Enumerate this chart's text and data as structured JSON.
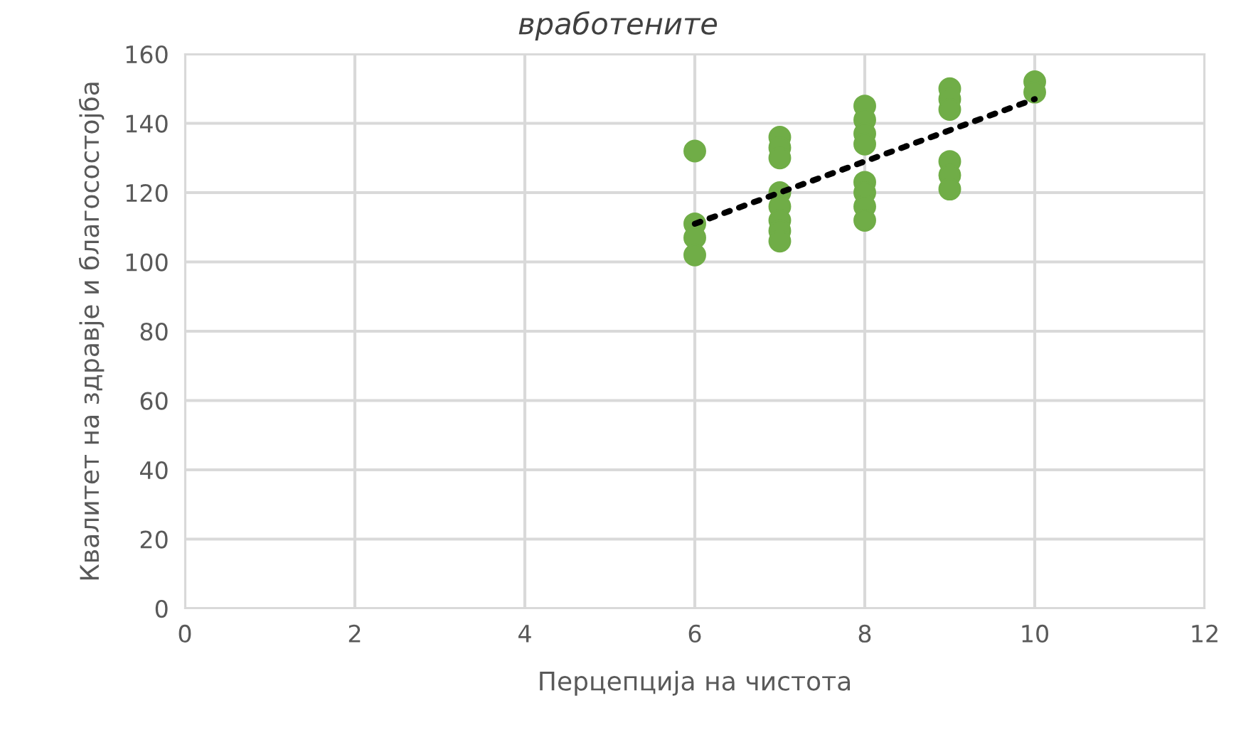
{
  "chart_data": {
    "type": "scatter",
    "title": "вработените",
    "xlabel": "Перцепција на чистота",
    "ylabel": "Квалитет на здравје и благосостојба",
    "series": [
      {
        "color": "#70ad47",
        "marker": "circle",
        "x": [
          6,
          6,
          6,
          6,
          7,
          7,
          7,
          7,
          7,
          7,
          7,
          7,
          8,
          8,
          8,
          8,
          8,
          8,
          8,
          8,
          9,
          9,
          9,
          9,
          9,
          9,
          10,
          10
        ],
        "values": [
          132,
          111,
          107,
          102,
          136,
          133,
          130,
          120,
          116,
          112,
          109,
          106,
          145,
          141,
          137,
          134,
          123,
          120,
          116,
          112,
          150,
          147,
          144,
          129,
          125,
          121,
          152,
          149
        ]
      },
      {
        "type": "line",
        "color": "#000000",
        "line_style": "dotted",
        "marker": "none",
        "x": [
          6,
          10
        ],
        "values": [
          111,
          147
        ]
      }
    ],
    "xlim": [
      0,
      12
    ],
    "xticks": [
      0,
      2,
      4,
      6,
      8,
      10,
      12
    ],
    "ylim": [
      0,
      160
    ],
    "yticks": [
      0,
      20,
      40,
      60,
      80,
      100,
      120,
      140,
      160
    ],
    "grid": true,
    "legend": false
  }
}
